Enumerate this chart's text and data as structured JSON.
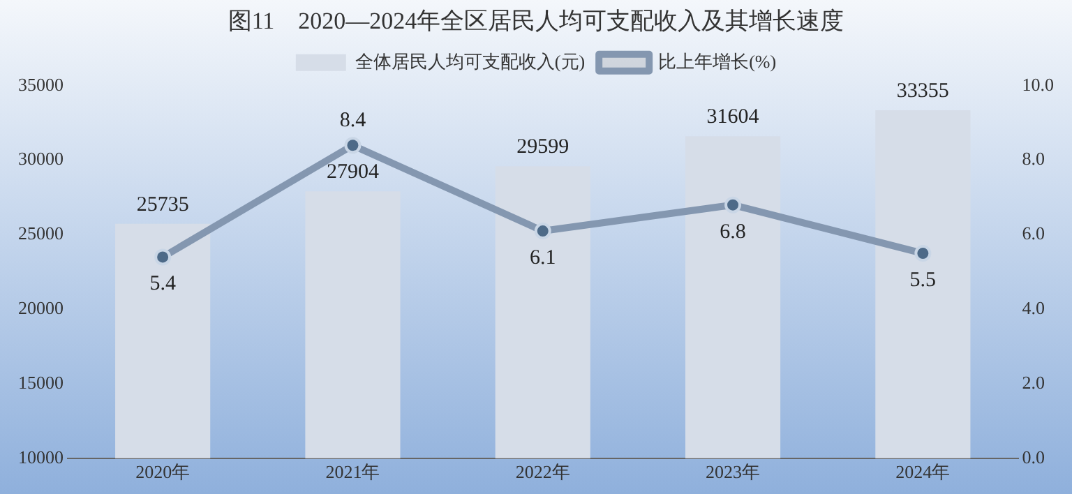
{
  "chart_data": {
    "type": "bar",
    "title": "图11　2020—2024年全区居民人均可支配收入及其增长速度",
    "categories": [
      "2020年",
      "2021年",
      "2022年",
      "2023年",
      "2024年"
    ],
    "series": [
      {
        "name": "全体居民人均可支配收入(元)",
        "color": "#d6dde8",
        "values": [
          25735,
          27904,
          29599,
          31604,
          33355
        ]
      },
      {
        "name": "比上年增长(%)",
        "type": "line",
        "axis": "y2",
        "color": "#8497b0",
        "values": [
          5.4,
          8.4,
          6.1,
          6.8,
          5.5
        ]
      }
    ],
    "ylim": [
      10000,
      35000
    ],
    "yticks": [
      10000,
      15000,
      20000,
      25000,
      30000,
      35000
    ],
    "y2lim": [
      0,
      10
    ],
    "y2ticks": [
      {
        "value": 0,
        "label": "0.0"
      },
      {
        "value": 2,
        "label": "2.0"
      },
      {
        "value": 4,
        "label": "4.0"
      },
      {
        "value": 6,
        "label": "6.0"
      },
      {
        "value": 8,
        "label": "8.0"
      },
      {
        "value": 10,
        "label": "10.0"
      }
    ],
    "grid": false,
    "legend": "top",
    "marker": "circle",
    "line_style": "solid",
    "data_labels": true
  }
}
